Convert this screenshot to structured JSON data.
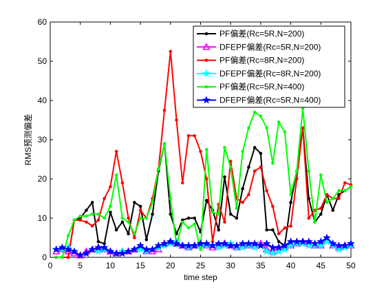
{
  "chart_data": {
    "type": "line",
    "title": "",
    "xlabel": "time step",
    "ylabel": "RMS预测偏差",
    "xlim": [
      0,
      50
    ],
    "ylim": [
      0,
      60
    ],
    "xticks": [
      0,
      5,
      10,
      15,
      20,
      25,
      30,
      35,
      40,
      45,
      50
    ],
    "yticks": [
      0,
      10,
      20,
      30,
      40,
      50,
      60
    ],
    "grid": false,
    "legend_position": "top-right",
    "x": [
      1,
      2,
      3,
      4,
      5,
      6,
      7,
      8,
      9,
      10,
      11,
      12,
      13,
      14,
      15,
      16,
      17,
      18,
      19,
      20,
      21,
      22,
      23,
      24,
      25,
      26,
      27,
      28,
      29,
      30,
      31,
      32,
      33,
      34,
      35,
      36,
      37,
      38,
      39,
      40,
      41,
      42,
      43,
      44,
      45,
      46,
      47,
      48,
      49,
      50
    ],
    "series": [
      {
        "name": "PF偏差(Rc=5R,N=200)",
        "color": "#000000",
        "marker": "dot",
        "values": [
          0,
          0,
          0,
          9.5,
          10,
          12,
          14,
          4,
          3.5,
          11.5,
          7,
          9,
          6,
          14,
          13,
          4.5,
          11,
          22,
          29,
          11,
          6,
          9.5,
          10,
          10,
          6.5,
          14.5,
          12,
          7,
          20.5,
          11,
          10,
          17.5,
          23,
          28,
          26.5,
          7,
          7,
          4,
          3,
          14,
          22,
          33,
          15,
          9,
          11,
          16,
          12,
          16,
          17,
          18
        ]
      },
      {
        "name": "DFEPF偏差(Rc=5R,N=200)",
        "color": "#ff00ff",
        "marker": "triangle",
        "values": [
          1.5,
          2,
          1.5,
          1,
          0.5,
          1.5,
          2,
          2.5,
          2,
          1.5,
          1,
          1.5,
          1.5,
          2,
          2.5,
          1.5,
          1.5,
          2,
          3.5,
          4,
          3.5,
          3,
          2.5,
          3,
          3.5,
          3,
          2.5,
          3,
          3.5,
          3,
          2.5,
          3,
          3,
          3,
          3.5,
          2,
          1.5,
          2.5,
          2.5,
          3,
          3.5,
          4,
          3.5,
          3,
          3,
          4.5,
          3,
          2.5,
          3,
          3
        ]
      },
      {
        "name": "PF偏差(Rc=8R,N=200)",
        "color": "#ff0000",
        "marker": "dot",
        "values": [
          0,
          0,
          0,
          9.5,
          9.5,
          9,
          8,
          9.5,
          15,
          18,
          27,
          19,
          10,
          5,
          12,
          10,
          15,
          22.5,
          37.5,
          52.5,
          35,
          19,
          31,
          31,
          27,
          20,
          4,
          13.5,
          9,
          24.5,
          15,
          14,
          16,
          22,
          23,
          17,
          13,
          6,
          7.5,
          8,
          20,
          33,
          10,
          12,
          12.5,
          16,
          15,
          15,
          19,
          18.5
        ]
      },
      {
        "name": "DFEPF偏差(Rc=8R,N=200)",
        "color": "#00ffff",
        "marker": "star",
        "values": [
          2,
          2,
          2.5,
          1.5,
          0.5,
          1,
          2,
          1.5,
          2,
          1.5,
          1,
          1.5,
          1.5,
          2,
          2,
          1.5,
          2,
          2.5,
          3,
          3.5,
          4,
          3,
          2.5,
          3,
          3,
          3,
          3,
          2.5,
          3,
          3.5,
          2.5,
          2.5,
          3,
          2.5,
          3,
          1.5,
          1,
          1.5,
          2,
          3,
          3.5,
          3.5,
          3,
          3,
          3,
          4,
          3,
          2,
          2.5,
          3
        ]
      },
      {
        "name": "PF偏差(Rc=5R,N=400)",
        "color": "#00ff00",
        "marker": "dot",
        "values": [
          0,
          0,
          5.5,
          9.5,
          10.5,
          10.5,
          11,
          11,
          10,
          13,
          21,
          10,
          9,
          6,
          10,
          10,
          14,
          22.5,
          29,
          15,
          3,
          9,
          7.5,
          8.5,
          2,
          27.5,
          11.5,
          11,
          28,
          23,
          12.5,
          27,
          33,
          37,
          36,
          33,
          24,
          34.5,
          32,
          16,
          22,
          38,
          22,
          9,
          21,
          14,
          15,
          17,
          17,
          18
        ]
      },
      {
        "name": "DFEPF偏差(Rc=5R,N=400)",
        "color": "#0000ff",
        "marker": "star",
        "values": [
          2,
          2.5,
          2,
          1.5,
          0.5,
          1,
          2,
          2.5,
          2.5,
          1.5,
          1,
          1,
          1.5,
          2,
          3,
          2,
          2,
          3,
          3.5,
          4,
          3.5,
          3,
          3,
          3,
          3.5,
          3.5,
          3,
          3.5,
          3.5,
          3,
          3,
          3.5,
          3.5,
          3.5,
          3,
          3.5,
          2.5,
          2.5,
          3,
          4,
          4,
          4,
          4,
          3.5,
          4,
          5,
          3.5,
          3,
          3,
          3.5
        ]
      }
    ]
  }
}
